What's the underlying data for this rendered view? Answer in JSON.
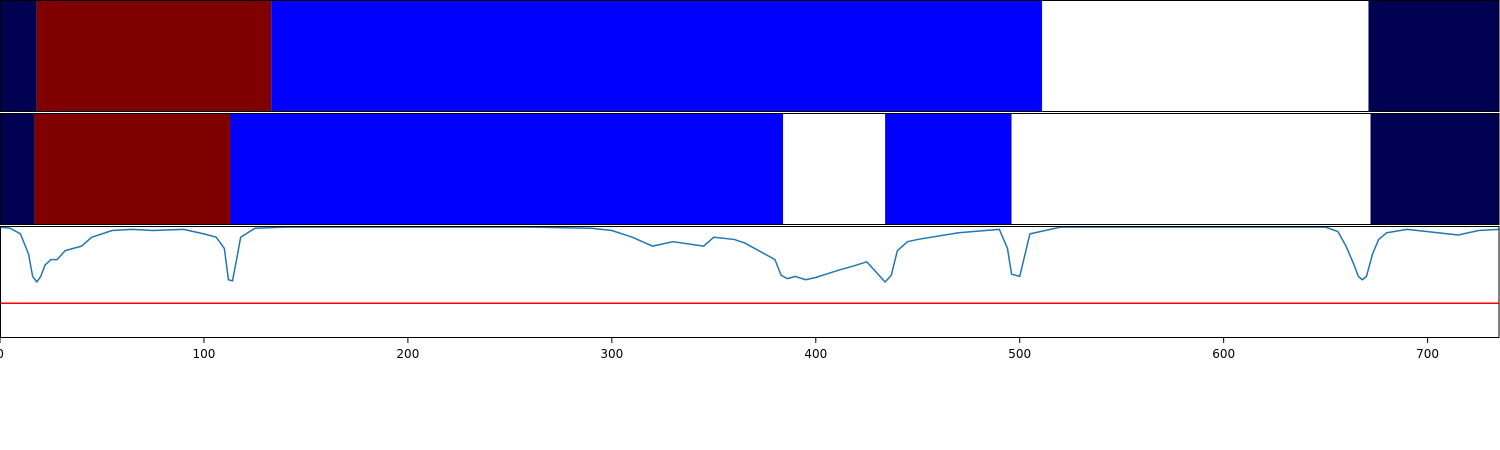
{
  "chart_data": [
    {
      "type": "segments",
      "name": "label track 1",
      "xlim": [
        0,
        735
      ],
      "segments": [
        {
          "start": 0,
          "end": 18,
          "color": "#000050"
        },
        {
          "start": 18,
          "end": 133,
          "color": "#800000"
        },
        {
          "start": 133,
          "end": 511,
          "color": "#0000ff"
        },
        {
          "start": 511,
          "end": 671,
          "color": "#ffffff"
        },
        {
          "start": 671,
          "end": 735,
          "color": "#000050"
        }
      ]
    },
    {
      "type": "segments",
      "name": "label track 2",
      "xlim": [
        0,
        735
      ],
      "segments": [
        {
          "start": 0,
          "end": 17,
          "color": "#000050"
        },
        {
          "start": 17,
          "end": 113,
          "color": "#800000"
        },
        {
          "start": 113,
          "end": 384,
          "color": "#0000ff"
        },
        {
          "start": 384,
          "end": 434,
          "color": "#ffffff"
        },
        {
          "start": 434,
          "end": 496,
          "color": "#0000ff"
        },
        {
          "start": 496,
          "end": 672,
          "color": "#ffffff"
        },
        {
          "start": 672,
          "end": 735,
          "color": "#000050"
        }
      ]
    },
    {
      "type": "line",
      "name": "score",
      "xlim": [
        0,
        735
      ],
      "ylim": [
        0,
        1
      ],
      "line_color": "#1f77b4",
      "threshold": 0.31,
      "threshold_color": "#ff0000",
      "x": [
        0,
        5,
        10,
        14,
        16,
        18,
        20,
        22,
        25,
        28,
        32,
        40,
        45,
        55,
        65,
        75,
        90,
        100,
        106,
        110,
        112,
        114,
        116,
        118,
        125,
        140,
        200,
        260,
        290,
        300,
        310,
        320,
        330,
        345,
        350,
        360,
        365,
        380,
        383,
        386,
        390,
        395,
        400,
        405,
        412,
        418,
        425,
        430,
        432,
        434,
        437,
        440,
        445,
        450,
        470,
        490,
        494,
        496,
        500,
        505,
        520,
        550,
        600,
        650,
        656,
        660,
        664,
        666,
        668,
        670,
        673,
        676,
        680,
        690,
        700,
        715,
        725,
        735
      ],
      "y": [
        0.99,
        0.98,
        0.93,
        0.75,
        0.55,
        0.5,
        0.55,
        0.65,
        0.7,
        0.7,
        0.78,
        0.82,
        0.9,
        0.96,
        0.97,
        0.96,
        0.97,
        0.93,
        0.9,
        0.8,
        0.52,
        0.51,
        0.7,
        0.9,
        0.98,
        0.99,
        0.99,
        0.99,
        0.98,
        0.96,
        0.9,
        0.82,
        0.86,
        0.82,
        0.9,
        0.88,
        0.85,
        0.7,
        0.56,
        0.53,
        0.55,
        0.52,
        0.54,
        0.57,
        0.61,
        0.64,
        0.68,
        0.58,
        0.54,
        0.5,
        0.56,
        0.78,
        0.86,
        0.88,
        0.94,
        0.97,
        0.8,
        0.57,
        0.55,
        0.93,
        0.99,
        0.99,
        0.99,
        0.99,
        0.95,
        0.82,
        0.65,
        0.55,
        0.52,
        0.55,
        0.75,
        0.88,
        0.94,
        0.97,
        0.95,
        0.92,
        0.96,
        0.97
      ]
    }
  ],
  "axis": {
    "xticks": [
      0,
      100,
      200,
      300,
      400,
      500,
      600,
      700
    ],
    "xtick_labels": [
      "0",
      "100",
      "200",
      "300",
      "400",
      "500",
      "600",
      "700"
    ]
  }
}
